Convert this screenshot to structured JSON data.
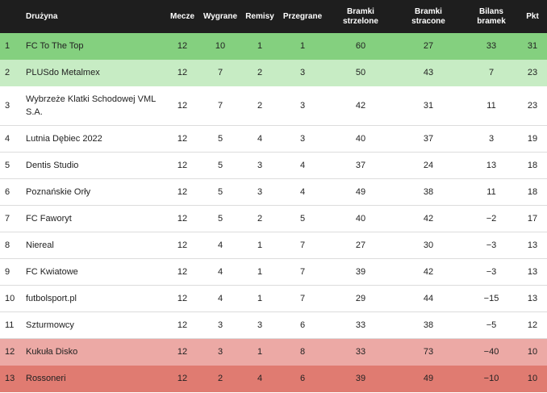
{
  "table": {
    "columns": [
      [
        ""
      ],
      [
        "Drużyna"
      ],
      [
        "Mecze"
      ],
      [
        "Wygrane"
      ],
      [
        "Remisy"
      ],
      [
        "Przegrane"
      ],
      [
        "Bramki",
        "strzelone"
      ],
      [
        "Bramki",
        "stracone"
      ],
      [
        "Bilans",
        "bramek"
      ],
      [
        "Pkt"
      ]
    ],
    "rows": [
      [
        "1",
        "FC To The Top",
        "12",
        "10",
        "1",
        "1",
        "60",
        "27",
        "33",
        "31"
      ],
      [
        "2",
        "PLUSdo Metalmex",
        "12",
        "7",
        "2",
        "3",
        "50",
        "43",
        "7",
        "23"
      ],
      [
        "3",
        "Wybrzeże Klatki Schodowej VML S.A.",
        "12",
        "7",
        "2",
        "3",
        "42",
        "31",
        "11",
        "23"
      ],
      [
        "4",
        "Lutnia Dębiec 2022",
        "12",
        "5",
        "4",
        "3",
        "40",
        "37",
        "3",
        "19"
      ],
      [
        "5",
        "Dentis Studio",
        "12",
        "5",
        "3",
        "4",
        "37",
        "24",
        "13",
        "18"
      ],
      [
        "6",
        "Poznańskie Orły",
        "12",
        "5",
        "3",
        "4",
        "49",
        "38",
        "11",
        "18"
      ],
      [
        "7",
        "FC Faworyt",
        "12",
        "5",
        "2",
        "5",
        "40",
        "42",
        "−2",
        "17"
      ],
      [
        "8",
        "Niereal",
        "12",
        "4",
        "1",
        "7",
        "27",
        "30",
        "−3",
        "13"
      ],
      [
        "9",
        "FC Kwiatowe",
        "12",
        "4",
        "1",
        "7",
        "39",
        "42",
        "−3",
        "13"
      ],
      [
        "10",
        "futbolsport.pl",
        "12",
        "4",
        "1",
        "7",
        "29",
        "44",
        "−15",
        "13"
      ],
      [
        "11",
        "Szturmowcy",
        "12",
        "3",
        "3",
        "6",
        "33",
        "38",
        "−5",
        "12"
      ],
      [
        "12",
        "Kukuła Disko",
        "12",
        "3",
        "1",
        "8",
        "33",
        "73",
        "−40",
        "10"
      ],
      [
        "13",
        "Rossoneri",
        "12",
        "2",
        "4",
        "6",
        "39",
        "49",
        "−10",
        "10"
      ]
    ]
  }
}
